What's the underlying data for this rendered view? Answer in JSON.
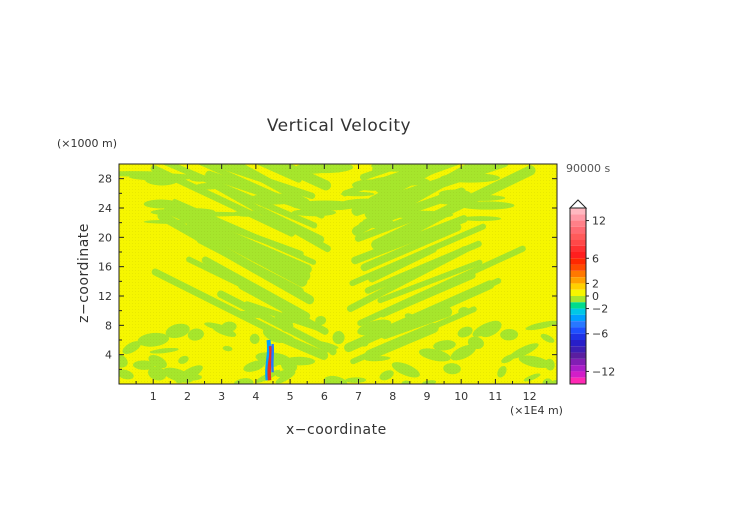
{
  "chart_data": {
    "type": "heatmap",
    "title": "Vertical Velocity",
    "xlabel": "x−coordinate",
    "ylabel": "z−coordinate",
    "x_unit_label": "(×1E4 m)",
    "y_unit_label": "(×1000 m)",
    "time_label": "90000 s",
    "xlim": [
      0,
      12.8
    ],
    "ylim": [
      0,
      30
    ],
    "x_ticks": [
      1,
      2,
      3,
      4,
      5,
      6,
      7,
      8,
      9,
      10,
      11,
      12
    ],
    "y_ticks": [
      4,
      8,
      12,
      16,
      20,
      24,
      28
    ],
    "grid": false,
    "dominant_field": {
      "background_color": "#f6f600",
      "band_color": "#a6e62c",
      "note_values": "near-zero band structure (values between about -1 and 1)"
    },
    "plume": {
      "x": 4.4,
      "z_range": [
        0.5,
        6
      ],
      "positive_color": "#e8321e",
      "negative_color": "#2878ff"
    },
    "colorbar": {
      "tick_labels": [
        "12",
        "6",
        "2",
        "0",
        "−2",
        "−6",
        "−12"
      ],
      "tick_values": [
        12,
        6,
        2,
        0,
        -2,
        -6,
        -12
      ],
      "range": [
        -14,
        14
      ],
      "levels": [
        {
          "from": 13,
          "to": 14,
          "color": "#ffb8c0"
        },
        {
          "from": 12,
          "to": 13,
          "color": "#ff9aa6"
        },
        {
          "from": 11,
          "to": 12,
          "color": "#ff8088"
        },
        {
          "from": 10,
          "to": 11,
          "color": "#ff6a72"
        },
        {
          "from": 9,
          "to": 10,
          "color": "#ff5a5a"
        },
        {
          "from": 8,
          "to": 9,
          "color": "#ff4848"
        },
        {
          "from": 7,
          "to": 8,
          "color": "#ff3030"
        },
        {
          "from": 6,
          "to": 7,
          "color": "#ff1e1e"
        },
        {
          "from": 5,
          "to": 6,
          "color": "#ff2800"
        },
        {
          "from": 4,
          "to": 5,
          "color": "#ff4a00"
        },
        {
          "from": 3,
          "to": 4,
          "color": "#ff7800"
        },
        {
          "from": 2,
          "to": 3,
          "color": "#ffa000"
        },
        {
          "from": 1,
          "to": 2,
          "color": "#ffd000"
        },
        {
          "from": 0,
          "to": 1,
          "color": "#f6f600"
        },
        {
          "from": -1,
          "to": 0,
          "color": "#a6e62c"
        },
        {
          "from": -2,
          "to": -1,
          "color": "#00dc8c"
        },
        {
          "from": -3,
          "to": -2,
          "color": "#00c8e6"
        },
        {
          "from": -4,
          "to": -3,
          "color": "#00a0ff"
        },
        {
          "from": -5,
          "to": -4,
          "color": "#2878ff"
        },
        {
          "from": -6,
          "to": -5,
          "color": "#1e50ff"
        },
        {
          "from": -7,
          "to": -6,
          "color": "#1e32e6"
        },
        {
          "from": -8,
          "to": -7,
          "color": "#281ec8"
        },
        {
          "from": -9,
          "to": -8,
          "color": "#3c1eb4"
        },
        {
          "from": -10,
          "to": -9,
          "color": "#5a1ea0"
        },
        {
          "from": -11,
          "to": -10,
          "color": "#821eb4"
        },
        {
          "from": -12,
          "to": -11,
          "color": "#aa1ec8"
        },
        {
          "from": -13,
          "to": -12,
          "color": "#d21ec8"
        },
        {
          "from": -14,
          "to": -13,
          "color": "#ff28b4"
        }
      ]
    }
  }
}
